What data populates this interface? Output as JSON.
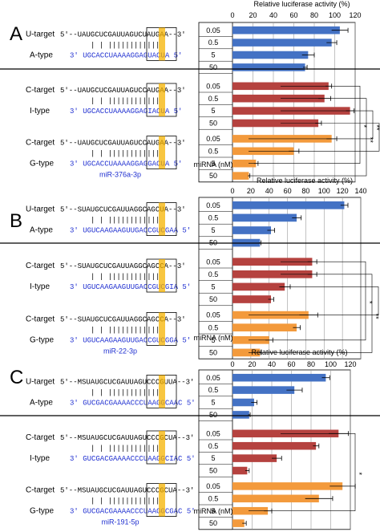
{
  "colors": {
    "blue": "#4472C4",
    "red": "#B5423F",
    "orange": "#F39A3C",
    "seq_blue": "#1F2FD0",
    "highlight": "#F5B300"
  },
  "chart_data": [
    {
      "panel": "A",
      "type": "bar",
      "orientation": "horizontal",
      "title": "Relative luciferase activity (%)",
      "ticks": [
        "0",
        "20",
        "40",
        "60",
        "80",
        "100",
        "120"
      ],
      "xlim": [
        0,
        120
      ],
      "xlabel": "miRNA (nM)",
      "grid": true,
      "groups": [
        {
          "target": "U-target",
          "type": "A-type",
          "color": "blue",
          "target_seq": "5'--UAUGCUCGAUUAGUCUAUGAA--3'",
          "mirna_seq": "3' UGCACCUAAAAGGAGUACUA 5'",
          "categories": [
            "0.05",
            "0.5",
            "5",
            "50"
          ],
          "values": [
            105,
            97,
            74,
            71
          ],
          "errors": [
            8,
            5,
            6,
            2
          ]
        },
        {
          "target": "C-target",
          "type": "I-type",
          "color": "red",
          "target_seq": "5'--UAUGCUCGAUUAGUCCAUGAA--3'",
          "mirna_seq": "3' UGCACCUAAAAGGAGIACUA 5'",
          "categories": [
            "0.05",
            "0.5",
            "5",
            "50"
          ],
          "values": [
            94,
            90,
            115,
            84
          ],
          "errors": [
            3,
            6,
            4,
            3
          ]
        },
        {
          "target": "C-target",
          "type": "G-type",
          "color": "orange",
          "target_seq": "5'--UAUGCUCGAUUAGUCCAUGAA--3'",
          "mirna_seq": "3' UGCACCUAAAAGGAGGACUA 5'",
          "categories": [
            "0.05",
            "0.5",
            "5",
            "50"
          ],
          "values": [
            97,
            60,
            23,
            16
          ],
          "errors": [
            5,
            5,
            2,
            1
          ]
        }
      ],
      "mirna_name": "miR-376a-3p",
      "significance": [
        "*",
        "**",
        "**",
        "**"
      ]
    },
    {
      "panel": "B",
      "type": "bar",
      "orientation": "horizontal",
      "title": "Relative luciferase activity (%)",
      "ticks": [
        "0",
        "20",
        "40",
        "60",
        "80",
        "100",
        "120",
        "140"
      ],
      "xlim": [
        0,
        140
      ],
      "xlabel": "miRNA (nM)",
      "grid": true,
      "groups": [
        {
          "target": "U-target",
          "type": "A-type",
          "color": "blue",
          "target_seq": "5'--SUAUGCUCGAUUAGGCAGCUA--3'",
          "mirna_seq": "3' UGUCAAGAAGUUGACCGUCGAA 5'",
          "categories": [
            "0.05",
            "0.5",
            "5",
            "50"
          ],
          "values": [
            122,
            70,
            42,
            30
          ],
          "errors": [
            4,
            5,
            4,
            1
          ]
        },
        {
          "target": "C-target",
          "type": "I-type",
          "color": "red",
          "target_seq": "5'--SUAUGCUCGAUUAGGCAGCCA--3'",
          "mirna_seq": "3' UGUCAAGAAGUUGACCGUCGIA 5'",
          "categories": [
            "0.05",
            "0.5",
            "5",
            "50"
          ],
          "values": [
            87,
            87,
            57,
            42
          ],
          "errors": [
            5,
            5,
            6,
            3
          ]
        },
        {
          "target": "C-target",
          "type": "G-type",
          "color": "orange",
          "target_seq": "5'--SUAUGCUCGAUUAGGCAGCCA--3'",
          "mirna_seq": "3' UGUCAAGAAGUUGACCGUCGGA 5'",
          "categories": [
            "0.05",
            "0.5",
            "5",
            "50"
          ],
          "values": [
            83,
            70,
            40,
            30
          ],
          "errors": [
            10,
            4,
            4,
            1
          ]
        }
      ],
      "mirna_name": "miR-22-3p",
      "significance": [
        "*",
        "**",
        "**"
      ]
    },
    {
      "panel": "C",
      "type": "bar",
      "orientation": "horizontal",
      "title": "Relative luciferase activity (%)",
      "ticks": [
        "0",
        "20",
        "40",
        "60",
        "80",
        "100",
        "120"
      ],
      "xlim": [
        0,
        120
      ],
      "xlabel": "miRNA (nM)",
      "grid": true,
      "groups": [
        {
          "target": "U-target",
          "type": "A-type",
          "color": "blue",
          "target_seq": "5'--MSUAUGCUCGAUUAGUCCCGUUA--3'",
          "mirna_seq": "3' GUCGACGAAAACCCUAAGGCAAC 5'",
          "categories": [
            "0.05",
            "0.5",
            "5",
            "50"
          ],
          "values": [
            95,
            63,
            22,
            17
          ],
          "errors": [
            4,
            8,
            3,
            1
          ]
        },
        {
          "target": "C-target",
          "type": "I-type",
          "color": "red",
          "target_seq": "5'--MSUAUGCUCGAUUAGUCCCGCUA--3'",
          "mirna_seq": "3' GUCGACGAAAACCCUAAGGCIAC 5'",
          "categories": [
            "0.05",
            "0.5",
            "5",
            "50"
          ],
          "values": [
            108,
            85,
            45,
            15
          ],
          "errors": [
            10,
            3,
            5,
            2
          ]
        },
        {
          "target": "C-target",
          "type": "G-type",
          "color": "orange",
          "target_seq": "5'--MSUAUGCUCGAUUAGUCCCGCUA--3'",
          "mirna_seq": "3' GUCGACGAAAACCCUAAGGCGAC 5'",
          "categories": [
            "0.05",
            "0.5",
            "5",
            "50"
          ],
          "values": [
            112,
            88,
            36,
            12
          ],
          "errors": [
            13,
            14,
            4,
            2
          ]
        }
      ],
      "mirna_name": "miR-191-5p",
      "significance": [
        "*"
      ]
    }
  ]
}
